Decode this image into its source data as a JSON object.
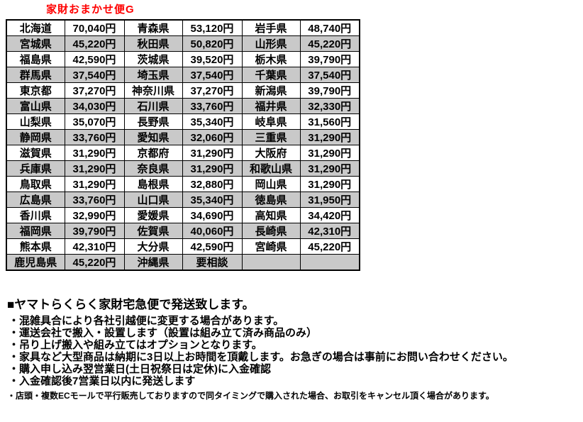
{
  "title": "家財おまかせ便G",
  "colors": {
    "title_red": "#ff0000",
    "stripe_gray": "#c9c9c9",
    "border_black": "#000000"
  },
  "table": {
    "rows": [
      [
        "北海道",
        "70,040円",
        "青森県",
        "53,120円",
        "岩手県",
        "48,740円"
      ],
      [
        "宮城県",
        "45,220円",
        "秋田県",
        "50,820円",
        "山形県",
        "45,220円"
      ],
      [
        "福島県",
        "42,590円",
        "茨城県",
        "39,520円",
        "栃木県",
        "39,790円"
      ],
      [
        "群馬県",
        "37,540円",
        "埼玉県",
        "37,540円",
        "千葉県",
        "37,540円"
      ],
      [
        "東京都",
        "37,270円",
        "神奈川県",
        "37,270円",
        "新潟県",
        "39,790円"
      ],
      [
        "富山県",
        "34,030円",
        "石川県",
        "33,760円",
        "福井県",
        "32,330円"
      ],
      [
        "山梨県",
        "35,070円",
        "長野県",
        "35,340円",
        "岐阜県",
        "31,560円"
      ],
      [
        "静岡県",
        "33,760円",
        "愛知県",
        "32,060円",
        "三重県",
        "31,290円"
      ],
      [
        "滋賀県",
        "31,290円",
        "京都府",
        "31,290円",
        "大阪府",
        "31,290円"
      ],
      [
        "兵庫県",
        "31,290円",
        "奈良県",
        "31,290円",
        "和歌山県",
        "31,290円"
      ],
      [
        "鳥取県",
        "31,290円",
        "島根県",
        "32,880円",
        "岡山県",
        "31,290円"
      ],
      [
        "広島県",
        "33,760円",
        "山口県",
        "35,340円",
        "徳島県",
        "31,950円"
      ],
      [
        "香川県",
        "32,990円",
        "愛媛県",
        "34,690円",
        "高知県",
        "34,420円"
      ],
      [
        "福岡県",
        "39,790円",
        "佐賀県",
        "40,060円",
        "長崎県",
        "42,310円"
      ],
      [
        "熊本県",
        "42,310円",
        "大分県",
        "42,590円",
        "宮崎県",
        "45,220円"
      ],
      [
        "鹿児島県",
        "45,220円",
        "沖縄県",
        "要相談",
        "",
        ""
      ]
    ]
  },
  "notes": {
    "heading": "■ヤマトらくらく家財宅急便で発送致します。",
    "items": [
      "・混雑具合により各社引越便に変更する場合があります。",
      "・運送会社で搬入・設置します（設置は組み立て済み商品のみ）",
      "・吊り上げ搬入や組み立てはオプションとなります。",
      "・家具など大型商品は納期に3日以上お時間を頂戴します。お急ぎの場合は事前にお問い合わせください。",
      "・購入申し込み翌営業日(土日祝祭日は定休)に入金確認",
      "・入金確認後7営業日以内に発送します"
    ],
    "footnote": "・店頭・複数ECモールで平行販売しておりますので同タイミングで購入された場合、お取引をキャンセル頂く場合があります。"
  }
}
